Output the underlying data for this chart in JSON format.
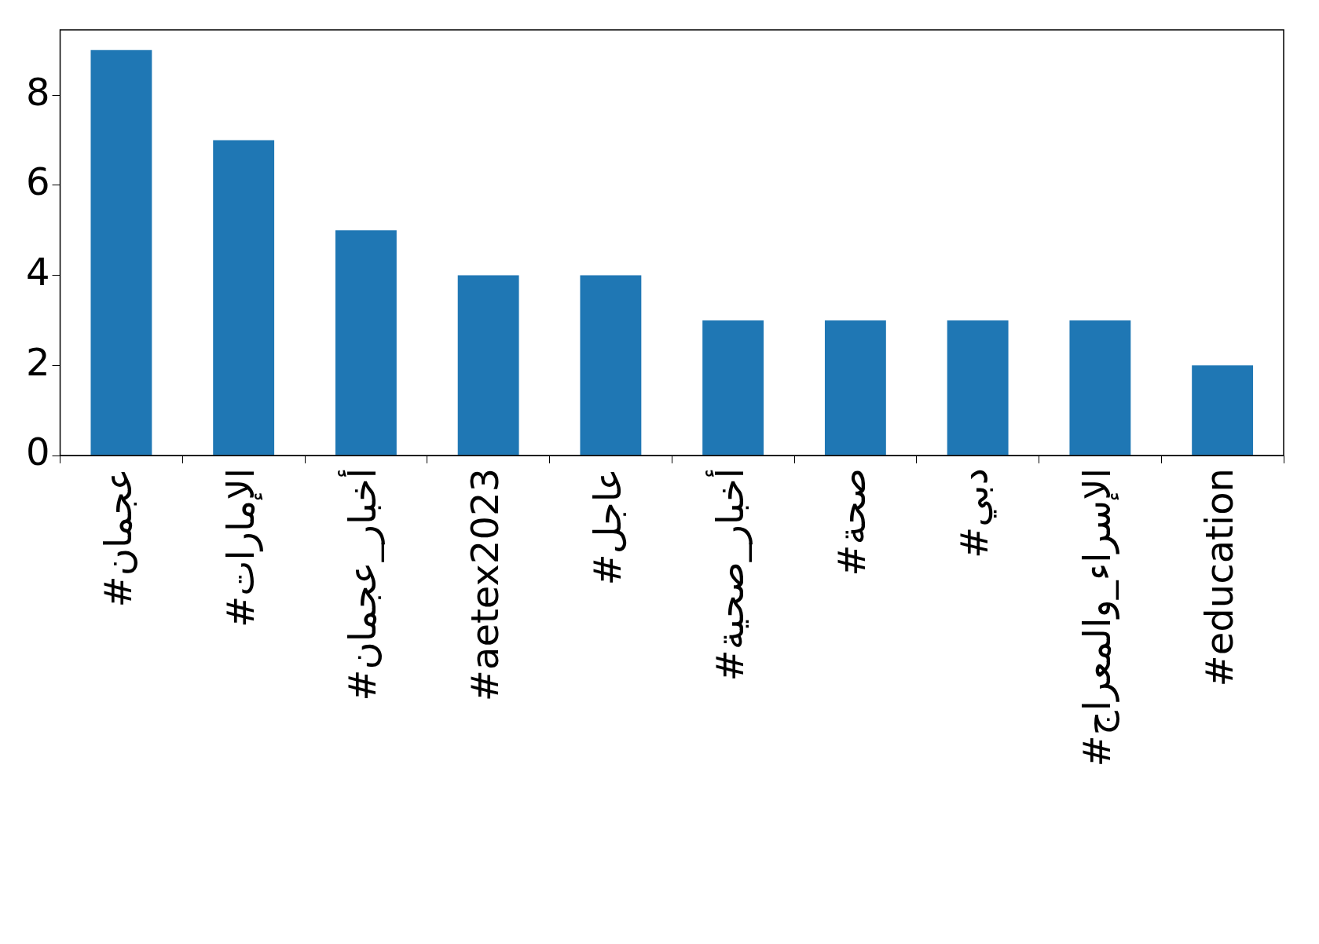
{
  "chart_data": {
    "type": "bar",
    "categories": [
      "#عجمان",
      "#الإمارات",
      "#أخبار_عجمان",
      "#aetex2023",
      "#عاجل",
      "#أخبار_صحية",
      "#صحة",
      "#دبي",
      "#الإسراء_والمعراج",
      "#education"
    ],
    "values": [
      9,
      7,
      5,
      4,
      4,
      3,
      3,
      3,
      3,
      2
    ],
    "color": "#1f77b4",
    "ylim": [
      0,
      9.45
    ],
    "yticks": [
      0,
      2,
      4,
      6,
      8
    ],
    "grid": false,
    "legend": false
  }
}
